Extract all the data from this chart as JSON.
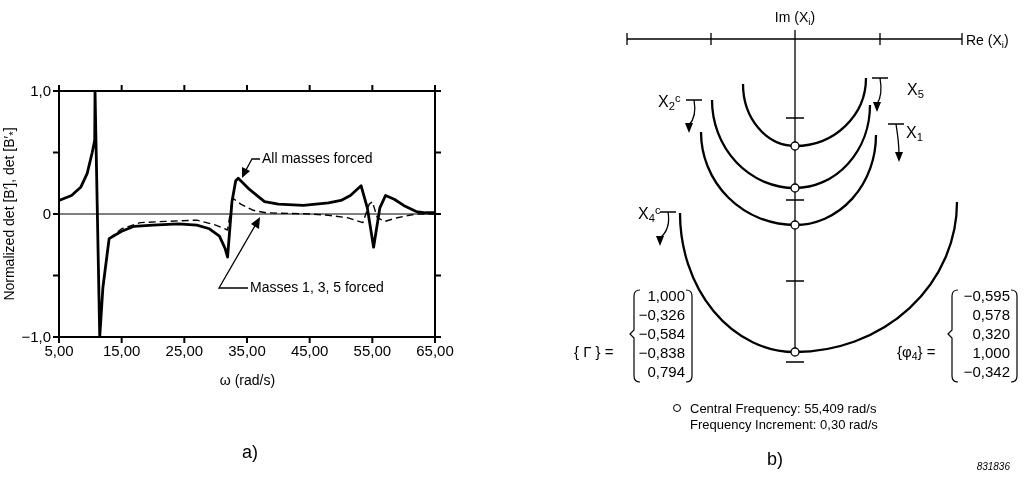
{
  "chart_data": [
    {
      "type": "line",
      "xlabel": "ω (rad/s)",
      "ylabel": "Normalized det [B′], det [B′$_{*}$]",
      "xlim": [
        5,
        65
      ],
      "ylim": [
        -1,
        1
      ],
      "xticks": [
        {
          "value": 5,
          "label": "5,00"
        },
        {
          "value": 15,
          "label": "15,00"
        },
        {
          "value": 25,
          "label": "25,00"
        },
        {
          "value": 35,
          "label": "35,00"
        },
        {
          "value": 45,
          "label": "45,00"
        },
        {
          "value": 55,
          "label": "55,00"
        },
        {
          "value": 65,
          "label": "65,00"
        }
      ],
      "yticks": [
        {
          "value": -1,
          "label": "−1,0"
        },
        {
          "value": -0.5,
          "label": null
        },
        {
          "value": 0,
          "label": "0"
        },
        {
          "value": 0.5,
          "label": null
        },
        {
          "value": 1,
          "label": "1,0"
        }
      ],
      "marker": "none",
      "ref_lines": [
        {
          "axis": "y",
          "value": 0,
          "color": "#000000"
        }
      ],
      "series": [
        {
          "name": "All masses forced",
          "color": "#000000",
          "line_style": "solid",
          "x": [
            5,
            7,
            8.5,
            9.5,
            10.3,
            10.7,
            10.75,
            11.5,
            12,
            13,
            15,
            17,
            20,
            24,
            27,
            29,
            30.6,
            31.5,
            31.9,
            32.6,
            33.2,
            33.6,
            35.4,
            37.8,
            40,
            44,
            48,
            50,
            51.5,
            53.2,
            54.2,
            55.2,
            56.2,
            57.1,
            58.5,
            60,
            62,
            63.5,
            65
          ],
          "values": [
            0.11,
            0.15,
            0.22,
            0.33,
            0.5,
            0.6,
            1.0,
            -1.0,
            -0.6,
            -0.2,
            -0.14,
            -0.1,
            -0.09,
            -0.08,
            -0.09,
            -0.12,
            -0.18,
            -0.28,
            -0.35,
            0.1,
            0.27,
            0.29,
            0.2,
            0.1,
            0.08,
            0.07,
            0.09,
            0.11,
            0.15,
            0.23,
            0.05,
            -0.27,
            0.05,
            0.15,
            0.12,
            0.07,
            0.02,
            0.01,
            0.01
          ]
        },
        {
          "name": "Masses 1, 3, 5 forced",
          "color": "#000000",
          "line_style": "dashed",
          "x": [
            13,
            15,
            18,
            22,
            27,
            30,
            31.9,
            32.7,
            34,
            36,
            38,
            45,
            48,
            51,
            53.5,
            54.5,
            55,
            55.8,
            57,
            59,
            62,
            65
          ],
          "values": [
            -0.2,
            -0.12,
            -0.07,
            -0.06,
            -0.05,
            -0.09,
            -0.13,
            0.13,
            0.08,
            0.03,
            0.01,
            0,
            -0.01,
            -0.03,
            -0.07,
            0.08,
            0.1,
            -0.03,
            -0.06,
            -0.03,
            0,
            0
          ]
        }
      ],
      "annotations": [
        "a)"
      ]
    },
    {
      "type": "other",
      "annotations": [
        "Im (X$_{i}$)",
        "Re (X$_{i}$)",
        "X$_{5}$",
        "X$_{2}$$^{c}$",
        "X$_{1}$",
        "X$_{4}$$^{c}$",
        "{ Γ } =",
        "1,000",
        "−0,326",
        "−0,584",
        "−0,838",
        "0,794",
        "{φ$_{4}$} =",
        "−0,595",
        "0,578",
        "0,320",
        "1,000",
        "−0,342",
        "Central Frequency: 55,409 rad/s",
        "Frequency Increment: 0,30 rad/s",
        "b)",
        "831836"
      ]
    }
  ]
}
